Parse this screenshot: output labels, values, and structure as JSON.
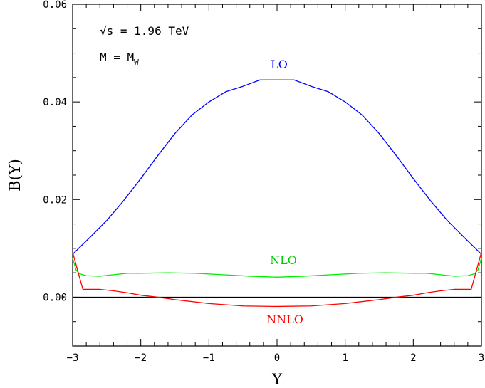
{
  "chart_data": {
    "type": "line",
    "title": "",
    "xlabel": "Y",
    "ylabel": "B(Y)",
    "xlim": [
      -3,
      3
    ],
    "ylim": [
      -0.01,
      0.06
    ],
    "x_ticks": [
      "−3",
      "−2",
      "−1",
      "0",
      "1",
      "2",
      "3"
    ],
    "y_ticks": [
      "0.00",
      "0.02",
      "0.04",
      "0.06"
    ],
    "y_tick_values": [
      0.0,
      0.02,
      0.04,
      0.06
    ],
    "x_tick_values": [
      -3,
      -2,
      -1,
      0,
      1,
      2,
      3
    ],
    "grid": false,
    "annotations": {
      "sqrt_s": "√s = 1.96 TeV",
      "mass_main": "M = M",
      "mass_sub": "W"
    },
    "series": [
      {
        "name": "LO",
        "color": "#0000ff",
        "x": [
          -3.0,
          -2.75,
          -2.5,
          -2.25,
          -2.0,
          -1.75,
          -1.5,
          -1.25,
          -1.0,
          -0.75,
          -0.5,
          -0.25,
          0.0,
          0.25,
          0.5,
          0.75,
          1.0,
          1.25,
          1.5,
          1.75,
          2.0,
          2.25,
          2.5,
          2.75,
          3.0
        ],
        "y": [
          0.0088,
          0.0122,
          0.0157,
          0.0198,
          0.0243,
          0.029,
          0.0335,
          0.0373,
          0.04,
          0.0421,
          0.0432,
          0.0445,
          0.0445,
          0.0445,
          0.0432,
          0.0421,
          0.04,
          0.0373,
          0.0335,
          0.029,
          0.0243,
          0.0198,
          0.0157,
          0.0122,
          0.0088
        ]
      },
      {
        "name": "NLO",
        "color": "#00ee00",
        "x": [
          -3.0,
          -2.95,
          -2.9,
          -2.8,
          -2.6,
          -2.4,
          -2.2,
          -2.0,
          -1.6,
          -1.2,
          -0.8,
          -0.4,
          0.0,
          0.4,
          0.8,
          1.2,
          1.6,
          2.0,
          2.2,
          2.4,
          2.6,
          2.8,
          2.9,
          2.95,
          3.0
        ],
        "y": [
          0.008,
          0.0056,
          0.0048,
          0.0044,
          0.0043,
          0.0046,
          0.0049,
          0.0049,
          0.005,
          0.0049,
          0.0046,
          0.0043,
          0.0041,
          0.0043,
          0.0046,
          0.0049,
          0.005,
          0.0049,
          0.0049,
          0.0046,
          0.0043,
          0.0044,
          0.0048,
          0.0056,
          0.008
        ]
      },
      {
        "name": "NNLO",
        "color": "#ff0000",
        "x": [
          -3.0,
          -2.85,
          -2.6,
          -2.4,
          -2.2,
          -2.0,
          -1.75,
          -1.5,
          -1.0,
          -0.5,
          0.0,
          0.5,
          1.0,
          1.5,
          1.75,
          2.0,
          2.2,
          2.4,
          2.6,
          2.85,
          3.0
        ],
        "y": [
          0.0092,
          0.0016,
          0.0016,
          0.0013,
          0.0009,
          0.0004,
          0.0,
          -0.0005,
          -0.0013,
          -0.0018,
          -0.0019,
          -0.0018,
          -0.0013,
          -0.0005,
          0.0,
          0.0004,
          0.0009,
          0.0013,
          0.0016,
          0.0016,
          0.0092
        ]
      }
    ]
  }
}
